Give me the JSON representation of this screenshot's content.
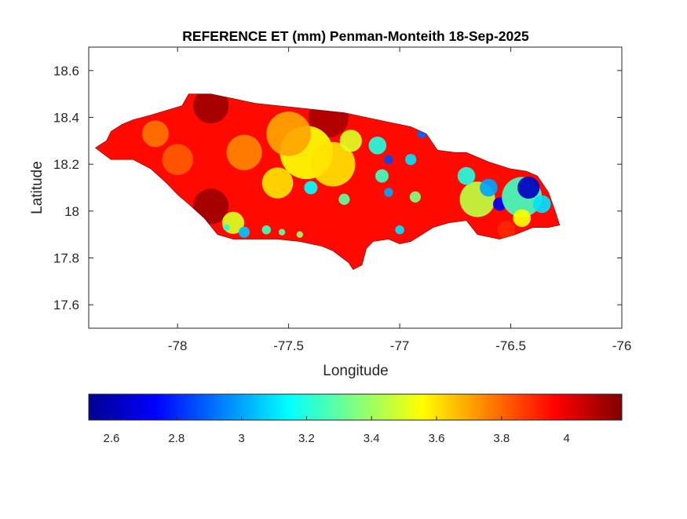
{
  "title": "REFERENCE ET (mm) Penman-Monteith 18-Sep-2025",
  "axes": {
    "xlabel": "Longitude",
    "ylabel": "Latitude",
    "xlim": [
      -78.4,
      -76
    ],
    "ylim": [
      17.5,
      18.7
    ],
    "xticks": [
      {
        "value": -78,
        "label": "-78"
      },
      {
        "value": -77.5,
        "label": "-77.5"
      },
      {
        "value": -77,
        "label": "-77"
      },
      {
        "value": -76.5,
        "label": "-76.5"
      },
      {
        "value": -76,
        "label": "-76"
      }
    ],
    "yticks": [
      {
        "value": 17.6,
        "label": "17.6"
      },
      {
        "value": 17.8,
        "label": "17.8"
      },
      {
        "value": 18,
        "label": "18"
      },
      {
        "value": 18.2,
        "label": "18.2"
      },
      {
        "value": 18.4,
        "label": "18.4"
      },
      {
        "value": 18.6,
        "label": "18.6"
      }
    ],
    "grid": false
  },
  "colorbar": {
    "orientation": "horizontal",
    "placement": "below",
    "colormap": "jet",
    "range": [
      2.53,
      4.17
    ],
    "ticks": [
      {
        "value": 2.6,
        "label": "2.6"
      },
      {
        "value": 2.8,
        "label": "2.8"
      },
      {
        "value": 3,
        "label": "3"
      },
      {
        "value": 3.2,
        "label": "3.2"
      },
      {
        "value": 3.4,
        "label": "3.4"
      },
      {
        "value": 3.6,
        "label": "3.6"
      },
      {
        "value": 3.8,
        "label": "3.8"
      },
      {
        "value": 4,
        "label": "4"
      }
    ],
    "colors": [
      "#00008f",
      "#0000ff",
      "#00ffff",
      "#ffff00",
      "#ff0000",
      "#800000"
    ]
  },
  "map_data": {
    "region": "Jamaica",
    "variable": "Reference evapotranspiration (mm)",
    "outline_lonlat": [
      [
        -78.37,
        18.27
      ],
      [
        -78.32,
        18.3
      ],
      [
        -78.3,
        18.34
      ],
      [
        -78.25,
        18.37
      ],
      [
        -78.2,
        18.39
      ],
      [
        -78.12,
        18.41
      ],
      [
        -78.05,
        18.43
      ],
      [
        -77.98,
        18.45
      ],
      [
        -77.95,
        18.5
      ],
      [
        -77.85,
        18.5
      ],
      [
        -77.75,
        18.48
      ],
      [
        -77.65,
        18.46
      ],
      [
        -77.55,
        18.45
      ],
      [
        -77.45,
        18.44
      ],
      [
        -77.35,
        18.43
      ],
      [
        -77.25,
        18.42
      ],
      [
        -77.15,
        18.4
      ],
      [
        -77.05,
        18.38
      ],
      [
        -76.95,
        18.36
      ],
      [
        -76.88,
        18.33
      ],
      [
        -76.83,
        18.26
      ],
      [
        -76.75,
        18.25
      ],
      [
        -76.7,
        18.25
      ],
      [
        -76.6,
        18.21
      ],
      [
        -76.5,
        18.18
      ],
      [
        -76.43,
        18.17
      ],
      [
        -76.38,
        18.15
      ],
      [
        -76.33,
        18.08
      ],
      [
        -76.3,
        18.0
      ],
      [
        -76.28,
        17.94
      ],
      [
        -76.33,
        17.93
      ],
      [
        -76.4,
        17.93
      ],
      [
        -76.48,
        17.9
      ],
      [
        -76.55,
        17.88
      ],
      [
        -76.65,
        17.9
      ],
      [
        -76.7,
        17.96
      ],
      [
        -76.78,
        17.95
      ],
      [
        -76.85,
        17.93
      ],
      [
        -76.9,
        17.9
      ],
      [
        -76.95,
        17.87
      ],
      [
        -77.0,
        17.86
      ],
      [
        -77.05,
        17.88
      ],
      [
        -77.12,
        17.87
      ],
      [
        -77.15,
        17.84
      ],
      [
        -77.17,
        17.77
      ],
      [
        -77.21,
        17.75
      ],
      [
        -77.23,
        17.78
      ],
      [
        -77.3,
        17.83
      ],
      [
        -77.35,
        17.85
      ],
      [
        -77.45,
        17.87
      ],
      [
        -77.55,
        17.88
      ],
      [
        -77.65,
        17.88
      ],
      [
        -77.75,
        17.88
      ],
      [
        -77.82,
        17.9
      ],
      [
        -77.88,
        17.97
      ],
      [
        -77.95,
        18.03
      ],
      [
        -78.0,
        18.07
      ],
      [
        -78.05,
        18.12
      ],
      [
        -78.12,
        18.18
      ],
      [
        -78.2,
        18.22
      ],
      [
        -78.3,
        18.22
      ],
      [
        -78.37,
        18.27
      ]
    ],
    "background_value": 3.95,
    "features": [
      {
        "lon": -77.85,
        "lat": 18.45,
        "r": 0.08,
        "value": 4.12
      },
      {
        "lon": -77.32,
        "lat": 18.4,
        "r": 0.09,
        "value": 4.1
      },
      {
        "lon": -78.1,
        "lat": 18.33,
        "r": 0.06,
        "value": 3.78
      },
      {
        "lon": -78.0,
        "lat": 18.22,
        "r": 0.07,
        "value": 3.82
      },
      {
        "lon": -77.7,
        "lat": 18.25,
        "r": 0.08,
        "value": 3.75
      },
      {
        "lon": -77.42,
        "lat": 18.25,
        "r": 0.12,
        "value": 3.55
      },
      {
        "lon": -77.3,
        "lat": 18.2,
        "r": 0.1,
        "value": 3.6
      },
      {
        "lon": -77.5,
        "lat": 18.33,
        "r": 0.1,
        "value": 3.7
      },
      {
        "lon": -77.55,
        "lat": 18.12,
        "r": 0.07,
        "value": 3.6
      },
      {
        "lon": -77.85,
        "lat": 18.02,
        "r": 0.08,
        "value": 4.12
      },
      {
        "lon": -77.75,
        "lat": 17.95,
        "r": 0.05,
        "value": 3.5
      },
      {
        "lon": -77.7,
        "lat": 17.91,
        "r": 0.025,
        "value": 3.05
      },
      {
        "lon": -77.78,
        "lat": 17.93,
        "r": 0.015,
        "value": 3.2
      },
      {
        "lon": -77.6,
        "lat": 17.92,
        "r": 0.02,
        "value": 3.25
      },
      {
        "lon": -77.53,
        "lat": 17.91,
        "r": 0.015,
        "value": 3.3
      },
      {
        "lon": -77.45,
        "lat": 17.9,
        "r": 0.015,
        "value": 3.4
      },
      {
        "lon": -77.4,
        "lat": 18.1,
        "r": 0.03,
        "value": 3.15
      },
      {
        "lon": -77.25,
        "lat": 18.05,
        "r": 0.025,
        "value": 3.3
      },
      {
        "lon": -77.22,
        "lat": 18.3,
        "r": 0.05,
        "value": 3.5
      },
      {
        "lon": -77.1,
        "lat": 18.28,
        "r": 0.04,
        "value": 3.2
      },
      {
        "lon": -77.08,
        "lat": 18.15,
        "r": 0.03,
        "value": 3.25
      },
      {
        "lon": -77.05,
        "lat": 18.08,
        "r": 0.02,
        "value": 3.0
      },
      {
        "lon": -76.95,
        "lat": 18.22,
        "r": 0.025,
        "value": 3.1
      },
      {
        "lon": -76.93,
        "lat": 18.06,
        "r": 0.025,
        "value": 3.35
      },
      {
        "lon": -76.9,
        "lat": 18.33,
        "r": 0.02,
        "value": 2.9
      },
      {
        "lon": -77.0,
        "lat": 17.92,
        "r": 0.02,
        "value": 3.1
      },
      {
        "lon": -77.05,
        "lat": 18.22,
        "r": 0.02,
        "value": 2.85
      },
      {
        "lon": -76.65,
        "lat": 18.05,
        "r": 0.08,
        "value": 3.45
      },
      {
        "lon": -76.7,
        "lat": 18.15,
        "r": 0.04,
        "value": 3.2
      },
      {
        "lon": -76.6,
        "lat": 18.1,
        "r": 0.04,
        "value": 3.0
      },
      {
        "lon": -76.55,
        "lat": 18.03,
        "r": 0.03,
        "value": 2.7
      },
      {
        "lon": -76.45,
        "lat": 18.06,
        "r": 0.09,
        "value": 3.25
      },
      {
        "lon": -76.42,
        "lat": 18.1,
        "r": 0.05,
        "value": 2.62
      },
      {
        "lon": -76.36,
        "lat": 18.03,
        "r": 0.04,
        "value": 3.1
      },
      {
        "lon": -76.45,
        "lat": 17.97,
        "r": 0.04,
        "value": 3.55
      },
      {
        "lon": -76.52,
        "lat": 17.92,
        "r": 0.04,
        "value": 3.9
      }
    ]
  }
}
